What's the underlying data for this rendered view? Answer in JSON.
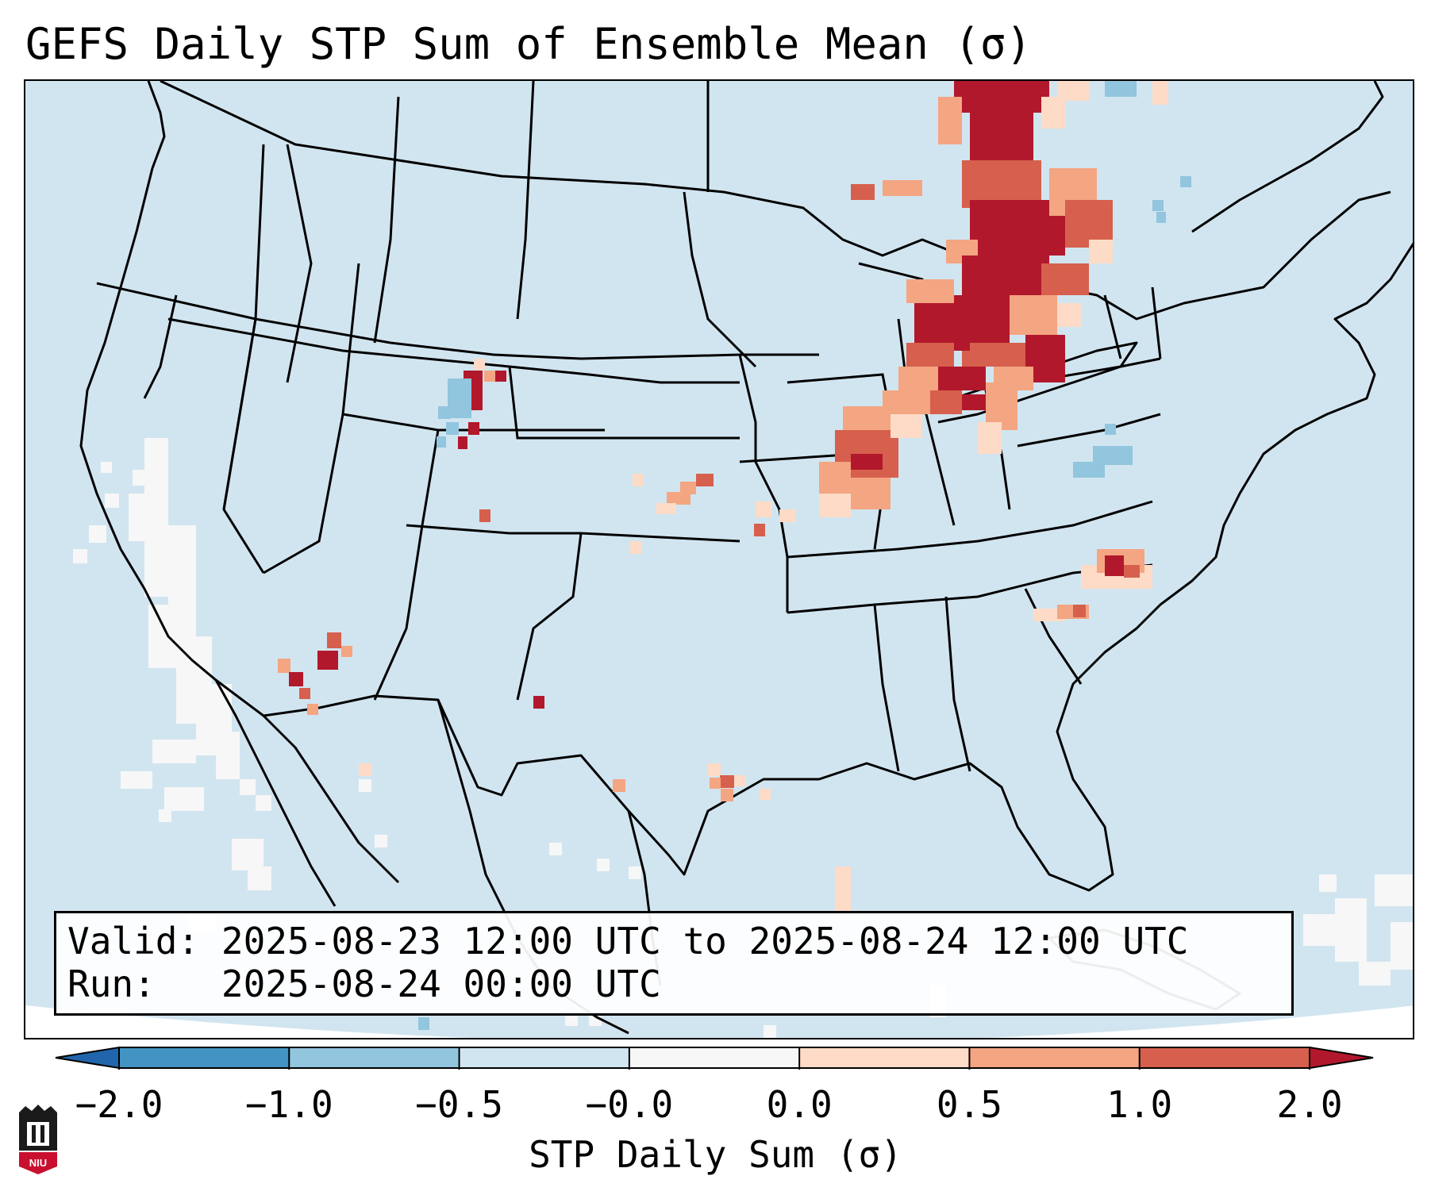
{
  "title": "GEFS Daily STP Sum of Ensemble Mean (σ)",
  "info": {
    "valid_label": "Valid:",
    "valid_value": "2025-08-23 12:00 UTC to 2025-08-24 12:00 UTC",
    "run_label": "Run:",
    "run_value": "2025-08-24 00:00 UTC"
  },
  "colorbar": {
    "label": "STP Daily Sum (σ)",
    "ticks": [
      "−2.0",
      "−1.0",
      "−0.5",
      "−0.0",
      "0.0",
      "0.5",
      "1.0",
      "2.0"
    ],
    "bins": [
      {
        "color": "#4393c3"
      },
      {
        "color": "#92c5de"
      },
      {
        "color": "#d1e5f0"
      },
      {
        "color": "#f7f7f7"
      },
      {
        "color": "#fddbc7"
      },
      {
        "color": "#f4a582"
      },
      {
        "color": "#d6604d"
      }
    ],
    "under_color": "#2166ac",
    "over_color": "#b2182b"
  },
  "map": {
    "background_color": "#d1e5f0",
    "region": "Contiguous United States",
    "highlighted_areas": [
      {
        "name": "Ontario / Quebec (Great Lakes)",
        "level": "high"
      },
      {
        "name": "Michigan / Lake Erie",
        "level": "high"
      },
      {
        "name": "Indiana",
        "level": "medium"
      },
      {
        "name": "Northern Colorado",
        "level": "high"
      },
      {
        "name": "Kansas",
        "level": "low"
      },
      {
        "name": "Arizona / Sonora",
        "level": "high"
      },
      {
        "name": "Western Atlantic (off Carolinas)",
        "level": "medium"
      },
      {
        "name": "Gulf of Mexico",
        "level": "low"
      },
      {
        "name": "Pacific coast (California)",
        "level": "neutral"
      }
    ]
  },
  "logo": {
    "text": "NIU",
    "color": "#c8102e"
  }
}
